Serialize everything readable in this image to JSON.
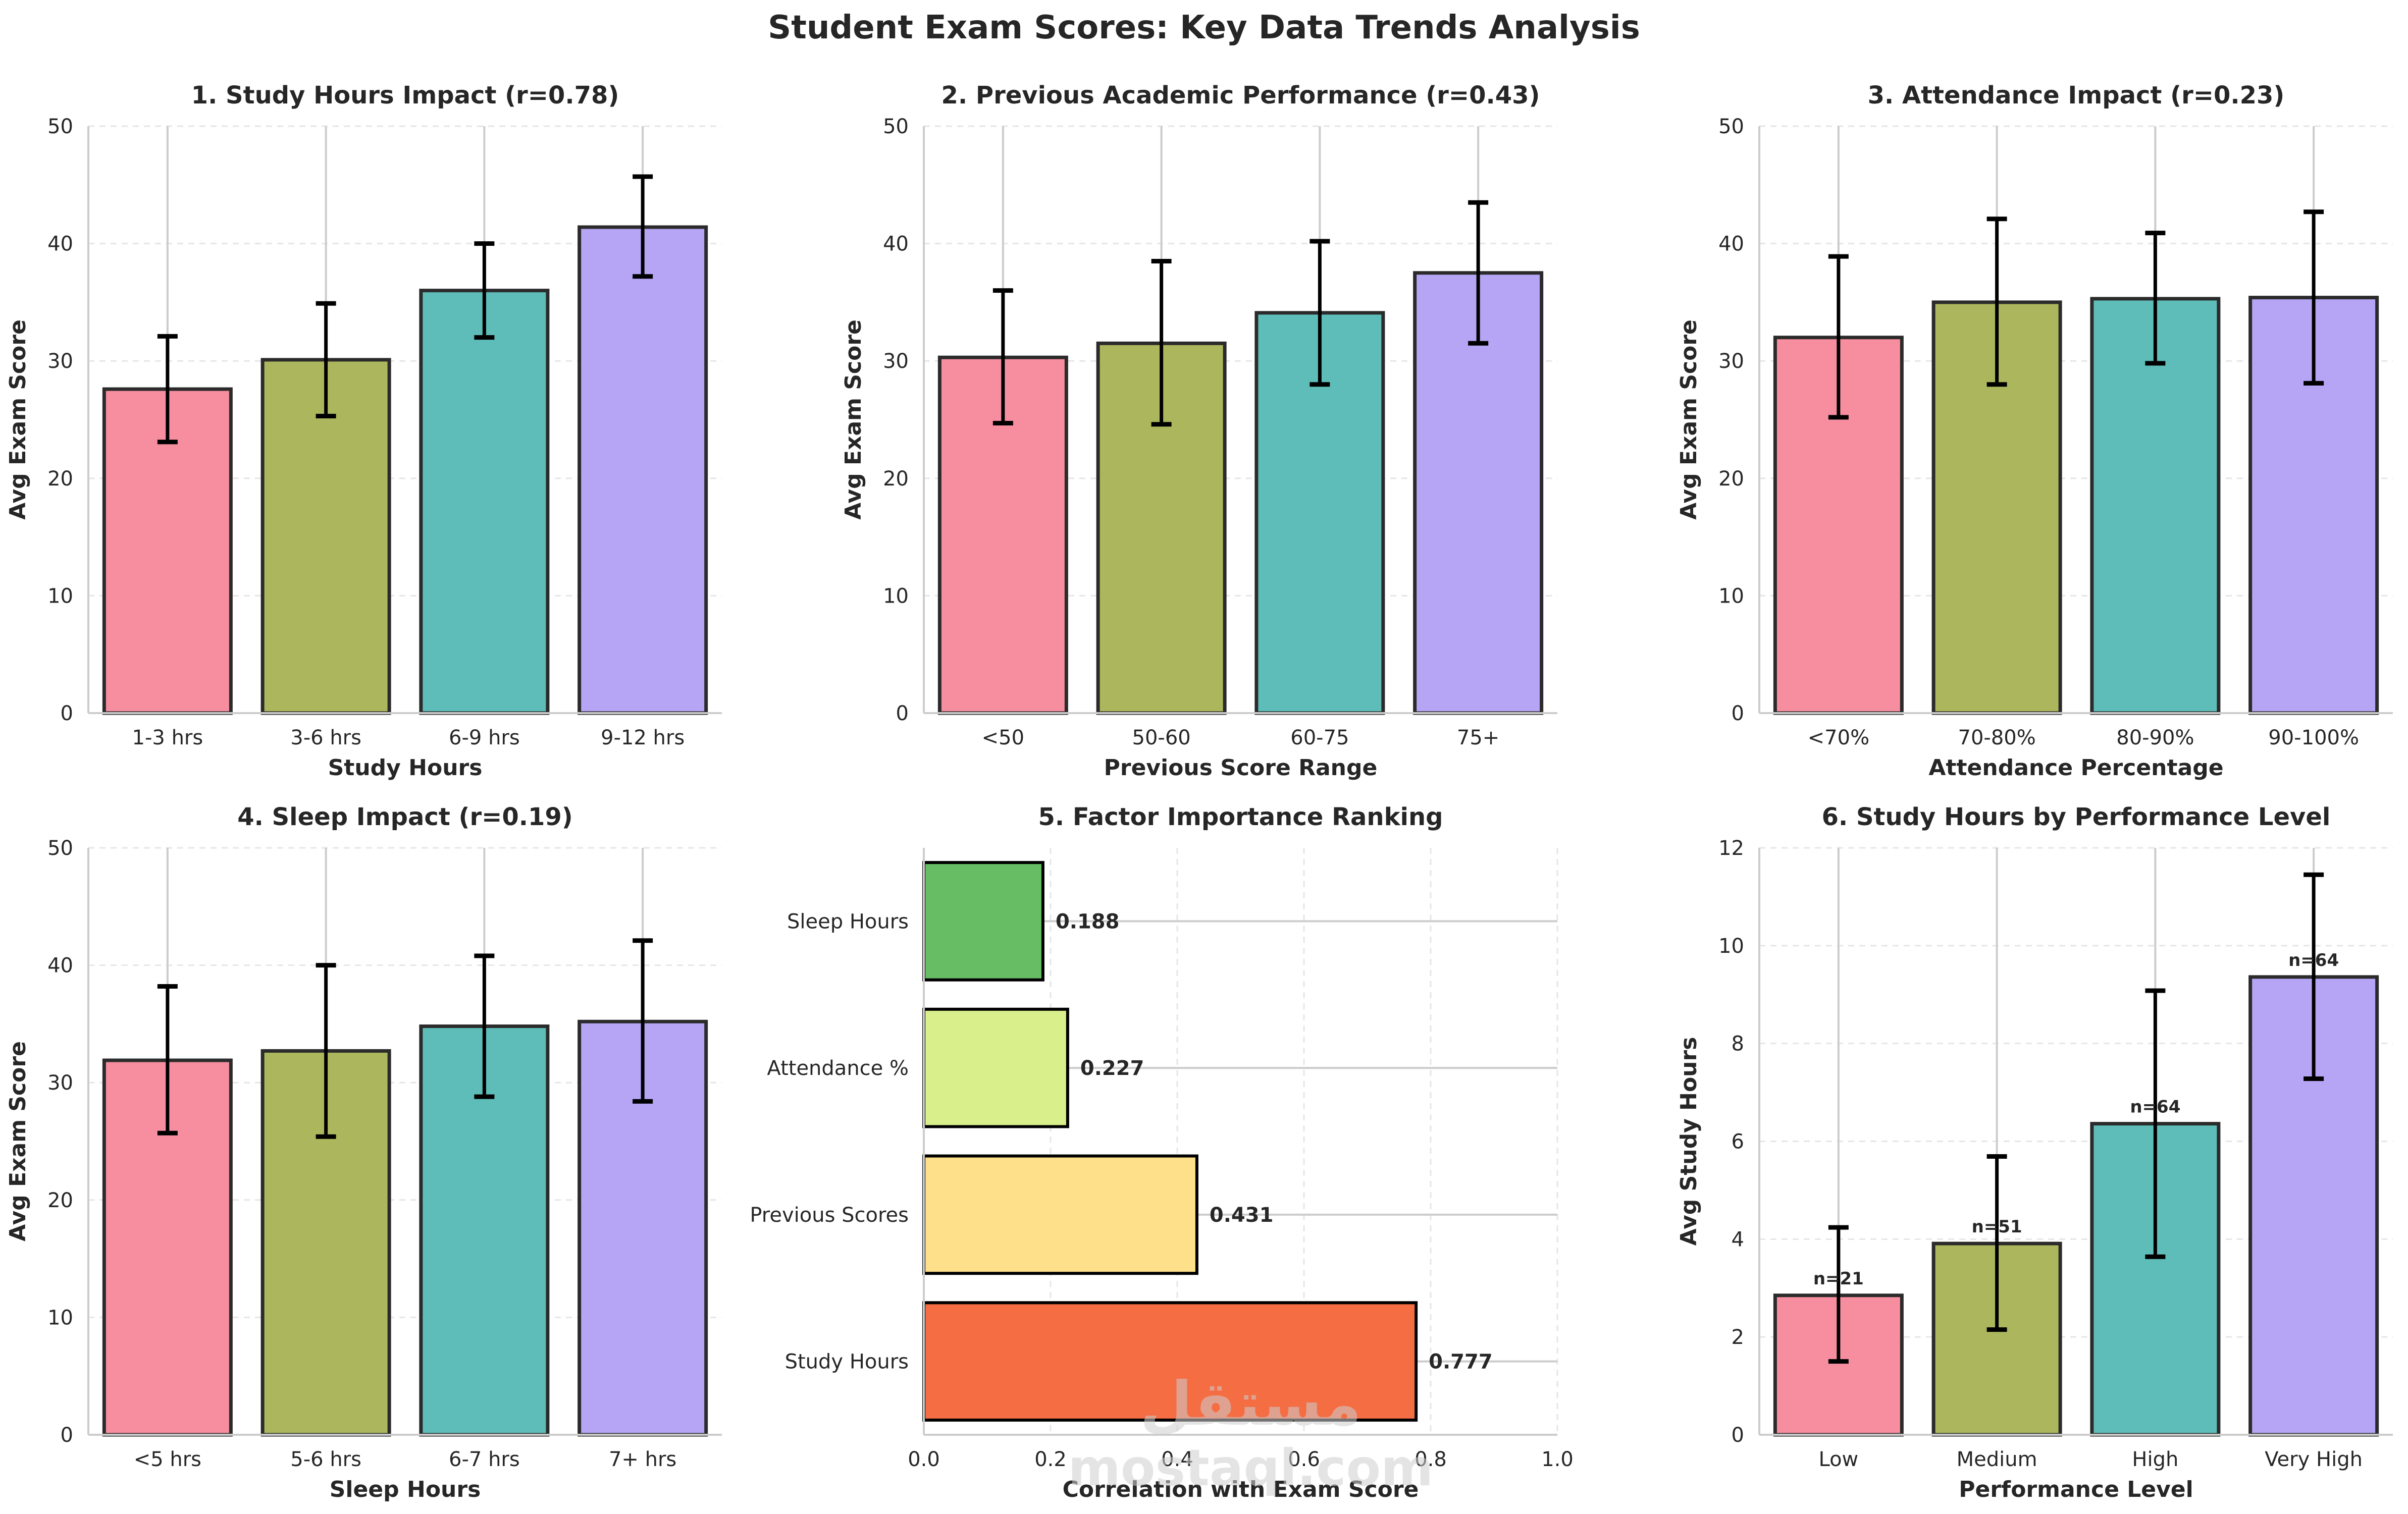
{
  "title": "Student Exam Scores: Key Data Trends Analysis",
  "watermark": {
    "arabic": "مستقل",
    "latin": "mostaql.com"
  },
  "colors": {
    "bars": [
      "#F78EA0",
      "#ACB75D",
      "#5EBDB8",
      "#B6A4F4"
    ],
    "factor_bars": [
      "#66BD63",
      "#D9EF8B",
      "#FEE08B",
      "#F46D43"
    ],
    "edge": "#2b2b2b",
    "errorbar": "#000000",
    "grid": "#e6e6e6",
    "axis": "#cccccc"
  },
  "chart_data": [
    {
      "id": "study-hours",
      "type": "bar",
      "title": "1. Study Hours Impact (r=0.78)",
      "xlabel": "Study Hours",
      "ylabel": "Avg Exam Score",
      "categories": [
        "1-3 hrs",
        "3-6 hrs",
        "6-9 hrs",
        "9-12 hrs"
      ],
      "values": [
        27.6,
        30.1,
        36.0,
        41.4
      ],
      "error_low": [
        23.1,
        25.3,
        32.0,
        37.2
      ],
      "error_high": [
        32.1,
        34.9,
        40.0,
        45.7
      ],
      "ylim": [
        0,
        50
      ],
      "yticks": [
        0,
        10,
        20,
        30,
        40,
        50
      ],
      "grid": true
    },
    {
      "id": "previous-performance",
      "type": "bar",
      "title": "2. Previous Academic Performance (r=0.43)",
      "xlabel": "Previous Score Range",
      "ylabel": "Avg Exam Score",
      "categories": [
        "<50",
        "50-60",
        "60-75",
        "75+"
      ],
      "values": [
        30.3,
        31.5,
        34.1,
        37.5
      ],
      "error_low": [
        24.7,
        24.6,
        28.0,
        31.5
      ],
      "error_high": [
        36.0,
        38.5,
        40.2,
        43.5
      ],
      "ylim": [
        0,
        50
      ],
      "yticks": [
        0,
        10,
        20,
        30,
        40,
        50
      ],
      "grid": true
    },
    {
      "id": "attendance",
      "type": "bar",
      "title": "3. Attendance Impact (r=0.23)",
      "xlabel": "Attendance Percentage",
      "ylabel": "Avg Exam Score",
      "categories": [
        "<70%",
        "70-80%",
        "80-90%",
        "90-100%"
      ],
      "values": [
        32.0,
        35.0,
        35.3,
        35.4
      ],
      "error_low": [
        25.2,
        28.0,
        29.8,
        28.1
      ],
      "error_high": [
        38.9,
        42.1,
        40.9,
        42.7
      ],
      "ylim": [
        0,
        50
      ],
      "yticks": [
        0,
        10,
        20,
        30,
        40,
        50
      ],
      "grid": true
    },
    {
      "id": "sleep",
      "type": "bar",
      "title": "4. Sleep Impact (r=0.19)",
      "xlabel": "Sleep Hours",
      "ylabel": "Avg Exam Score",
      "categories": [
        "<5 hrs",
        "5-6 hrs",
        "6-7 hrs",
        "7+ hrs"
      ],
      "values": [
        31.9,
        32.7,
        34.8,
        35.2
      ],
      "error_low": [
        25.7,
        25.4,
        28.8,
        28.4
      ],
      "error_high": [
        38.2,
        40.0,
        40.8,
        42.1
      ],
      "ylim": [
        0,
        50
      ],
      "yticks": [
        0,
        10,
        20,
        30,
        40,
        50
      ],
      "grid": true
    },
    {
      "id": "factor-importance",
      "type": "bar",
      "orientation": "horizontal",
      "title": "5. Factor Importance Ranking",
      "xlabel": "Correlation with Exam Score",
      "ylabel": "",
      "categories": [
        "Study Hours",
        "Previous Scores",
        "Attendance %",
        "Sleep Hours"
      ],
      "values": [
        0.777,
        0.431,
        0.227,
        0.188
      ],
      "value_labels": [
        "0.777",
        "0.431",
        "0.227",
        "0.188"
      ],
      "xlim": [
        0,
        1.0
      ],
      "xticks": [
        "0.0",
        "0.2",
        "0.4",
        "0.6",
        "0.8",
        "1.0"
      ],
      "grid": true
    },
    {
      "id": "study-by-performance",
      "type": "bar",
      "title": "6. Study Hours by Performance Level",
      "xlabel": "Performance Level",
      "ylabel": "Avg Study Hours",
      "categories": [
        "Low",
        "Medium",
        "High",
        "Very High"
      ],
      "values": [
        2.85,
        3.91,
        6.36,
        9.36
      ],
      "error_low": [
        1.5,
        2.15,
        3.64,
        7.28
      ],
      "error_high": [
        4.24,
        5.69,
        9.08,
        11.45
      ],
      "annotations": [
        "n=21",
        "n=51",
        "n=64",
        "n=64"
      ],
      "ylim": [
        0,
        12
      ],
      "yticks": [
        0,
        2,
        4,
        6,
        8,
        10,
        12
      ],
      "grid": true
    }
  ]
}
